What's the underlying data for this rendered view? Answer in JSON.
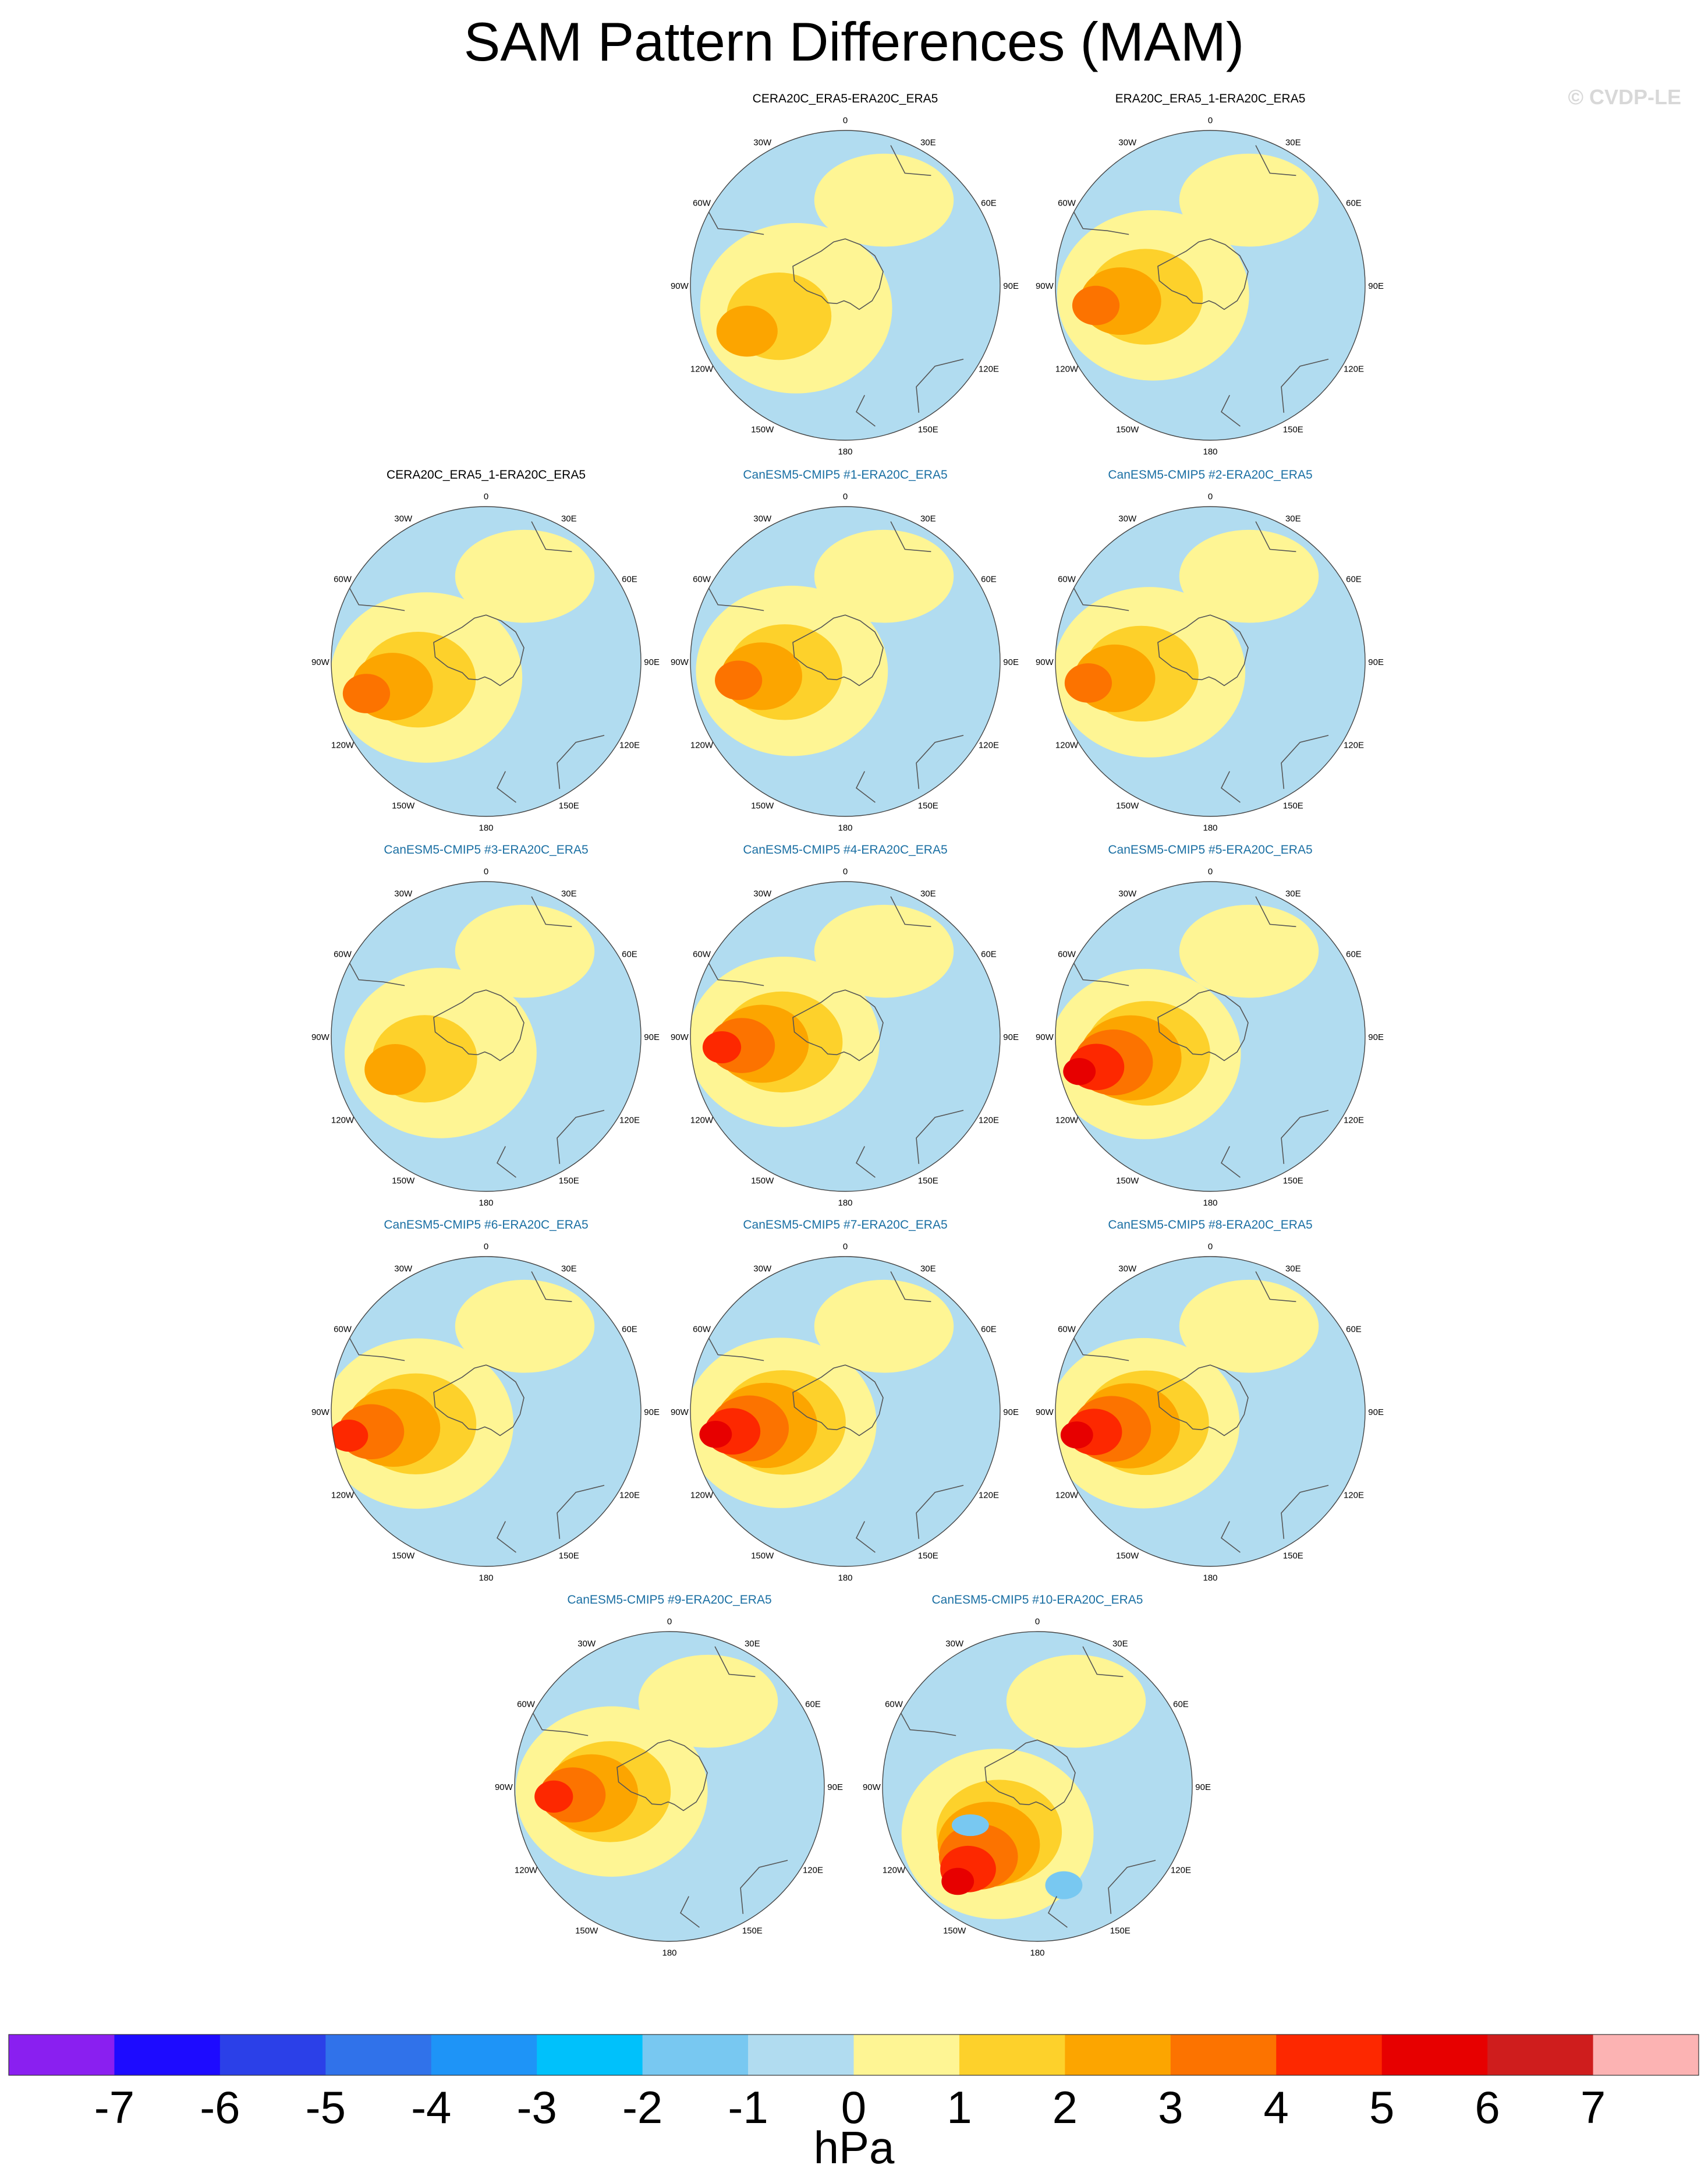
{
  "figure": {
    "title": "SAM Pattern Differences (MAM)",
    "copyright": "© CVDP-LE",
    "units": "hPa",
    "panel_titles": [
      "CERA20C_ERA5-ERA20C_ERA5",
      "ERA20C_ERA5_1-ERA20C_ERA5",
      "CERA20C_ERA5_1-ERA20C_ERA5",
      "CanESM5-CMIP5 #1-ERA20C_ERA5",
      "CanESM5-CMIP5 #2-ERA20C_ERA5",
      "CanESM5-CMIP5 #3-ERA20C_ERA5",
      "CanESM5-CMIP5 #4-ERA20C_ERA5",
      "CanESM5-CMIP5 #5-ERA20C_ERA5",
      "CanESM5-CMIP5 #6-ERA20C_ERA5",
      "CanESM5-CMIP5 #7-ERA20C_ERA5",
      "CanESM5-CMIP5 #8-ERA20C_ERA5",
      "CanESM5-CMIP5 #9-ERA20C_ERA5",
      "CanESM5-CMIP5 #10-ERA20C_ERA5"
    ],
    "longitude_labels": [
      "0",
      "30E",
      "60E",
      "90E",
      "120E",
      "150E",
      "180",
      "150W",
      "120W",
      "90W",
      "60W",
      "30W"
    ]
  },
  "chart_data": {
    "type": "heatmap",
    "projection": "south polar stereographic",
    "variable": "SAM Pattern Differences (MAM)",
    "units": "hPa",
    "colorbar": {
      "levels": [
        -7,
        -6,
        -5,
        -4,
        -3,
        -2,
        -1,
        0,
        1,
        2,
        3,
        4,
        5,
        6,
        7
      ],
      "tick_labels": [
        "-7",
        "-6",
        "-5",
        "-4",
        "-3",
        "-2",
        "-1",
        "0",
        "1",
        "2",
        "3",
        "4",
        "5",
        "6",
        "7"
      ],
      "colors": [
        "#8a1ff0",
        "#1d0bff",
        "#2b40e8",
        "#3072ea",
        "#1e94f7",
        "#00c1fb",
        "#78c8f1",
        "#b1dcf0",
        "#fef594",
        "#fdd12b",
        "#fca500",
        "#fc7300",
        "#fd2800",
        "#e70000",
        "#cf1d1d",
        "#fcb3b3"
      ]
    },
    "panels": [
      {
        "name": "CERA20C_ERA5-ERA20C_ERA5",
        "title_style": "obs",
        "max_level": 2,
        "peak_lon": -115,
        "peak_lat": -62,
        "background_level": 0
      },
      {
        "name": "ERA20C_ERA5_1-ERA20C_ERA5",
        "title_style": "obs",
        "max_level": 3,
        "peak_lon": -100,
        "peak_lat": -60,
        "background_level": 0
      },
      {
        "name": "CERA20C_ERA5_1-ERA20C_ERA5",
        "title_style": "obs",
        "max_level": 3,
        "peak_lon": -105,
        "peak_lat": -58,
        "background_level": 0
      },
      {
        "name": "CanESM5-CMIP5 #1-ERA20C_ERA5",
        "title_style": "model",
        "max_level": 3,
        "peak_lon": -100,
        "peak_lat": -62,
        "background_level": 0
      },
      {
        "name": "CanESM5-CMIP5 #2-ERA20C_ERA5",
        "title_style": "model",
        "max_level": 3,
        "peak_lon": -100,
        "peak_lat": -58,
        "background_level": 0
      },
      {
        "name": "CanESM5-CMIP5 #3-ERA20C_ERA5",
        "title_style": "model",
        "max_level": 2,
        "peak_lon": -110,
        "peak_lat": -65,
        "background_level": 0
      },
      {
        "name": "CanESM5-CMIP5 #4-ERA20C_ERA5",
        "title_style": "model",
        "max_level": 4,
        "peak_lon": -95,
        "peak_lat": -58,
        "background_level": 0
      },
      {
        "name": "CanESM5-CMIP5 #5-ERA20C_ERA5",
        "title_style": "model",
        "max_level": 5,
        "peak_lon": -105,
        "peak_lat": -55,
        "background_level": 0
      },
      {
        "name": "CanESM5-CMIP5 #6-ERA20C_ERA5",
        "title_style": "model",
        "max_level": 4,
        "peak_lon": -100,
        "peak_lat": -52,
        "background_level": 0
      },
      {
        "name": "CanESM5-CMIP5 #7-ERA20C_ERA5",
        "title_style": "model",
        "max_level": 5,
        "peak_lon": -100,
        "peak_lat": -56,
        "background_level": 0
      },
      {
        "name": "CanESM5-CMIP5 #8-ERA20C_ERA5",
        "title_style": "model",
        "max_level": 5,
        "peak_lon": -100,
        "peak_lat": -55,
        "background_level": 0
      },
      {
        "name": "CanESM5-CMIP5 #9-ERA20C_ERA5",
        "title_style": "model",
        "max_level": 4,
        "peak_lon": -95,
        "peak_lat": -60,
        "background_level": 0
      },
      {
        "name": "CanESM5-CMIP5 #10-ERA20C_ERA5",
        "title_style": "model",
        "max_level": 5,
        "peak_lon": -140,
        "peak_lat": -58,
        "background_level": 0,
        "negative_min_level": -1
      }
    ]
  }
}
